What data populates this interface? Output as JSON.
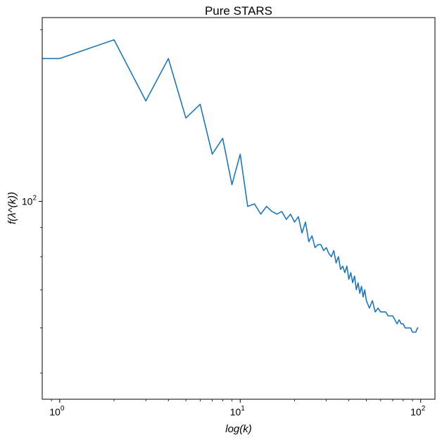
{
  "chart_data": {
    "type": "line",
    "title": "Pure STARS",
    "xlabel": "log(k)",
    "ylabel": "f(λ^(k))",
    "xscale": "log",
    "yscale": "log",
    "xlim": [
      0.8,
      120
    ],
    "ylim": [
      45,
      210
    ],
    "x_ticks": [
      {
        "value": 1,
        "base": "10",
        "exp": "0"
      },
      {
        "value": 10,
        "base": "10",
        "exp": "1"
      },
      {
        "value": 100,
        "base": "10",
        "exp": "2"
      }
    ],
    "y_ticks": [
      {
        "value": 100,
        "base": "10",
        "exp": "2"
      }
    ],
    "grid": false,
    "line_color": "#1f77b4",
    "series": [
      {
        "x": [
          0.8,
          1,
          2,
          3,
          4,
          5,
          6,
          7,
          8,
          9,
          10,
          11,
          12,
          13,
          14,
          15,
          16,
          17,
          18,
          19,
          20,
          21,
          22,
          23,
          24,
          25,
          26,
          27,
          28,
          29,
          30,
          31,
          32,
          33,
          34,
          35,
          36,
          37,
          38,
          39,
          40,
          41,
          42,
          43,
          44,
          45,
          46,
          47,
          48,
          49,
          50,
          52,
          54,
          56,
          58,
          60,
          62,
          64,
          66,
          68,
          70,
          72,
          74,
          76,
          78,
          80,
          82,
          84,
          86,
          88,
          90,
          92,
          94,
          96,
          97
        ],
        "y": [
          178,
          178,
          192,
          150,
          178,
          140,
          148,
          121,
          129,
          107,
          121,
          98,
          99,
          95,
          98,
          96,
          95,
          96,
          93,
          95,
          92,
          94,
          88,
          92,
          85,
          87,
          83,
          84,
          84,
          82,
          83,
          81,
          80,
          82,
          78,
          80,
          76,
          77,
          75,
          77,
          73,
          75,
          72,
          74,
          70,
          72,
          69,
          71,
          68,
          70,
          67,
          65,
          67,
          64,
          65,
          64,
          64,
          64,
          63,
          63,
          63,
          62,
          61,
          62,
          61,
          61,
          60,
          60,
          60,
          60,
          59,
          59,
          59,
          60,
          60
        ]
      }
    ]
  }
}
